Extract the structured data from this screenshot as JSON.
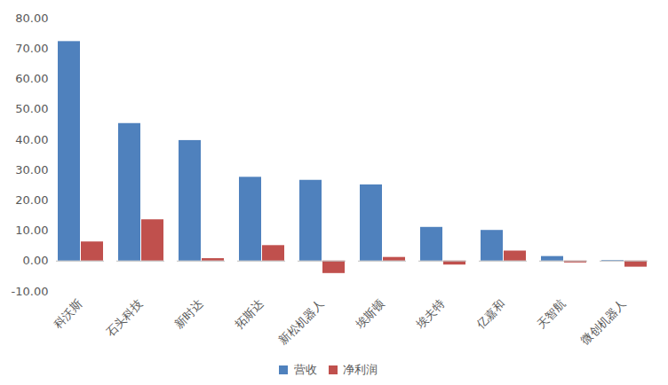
{
  "chart_data": {
    "type": "bar",
    "categories": [
      "科沃斯",
      "石头科技",
      "新时达",
      "拓斯达",
      "新松机器人",
      "埃斯顿",
      "埃夫特",
      "亿嘉和",
      "天智航",
      "微创机器人"
    ],
    "series": [
      {
        "name": "营收",
        "color": "#4f81bd",
        "values": [
          72.3,
          45.3,
          39.7,
          27.6,
          26.6,
          25.1,
          11.1,
          10.1,
          1.5,
          0.2
        ]
      },
      {
        "name": "净利润",
        "color": "#c0504d",
        "values": [
          6.3,
          13.6,
          0.8,
          5.1,
          -4.1,
          1.2,
          -1.3,
          3.3,
          -0.6,
          -2.0
        ]
      }
    ],
    "ylim": [
      -10,
      80
    ],
    "yticks": [
      {
        "value": -10,
        "label": "-10.00"
      },
      {
        "value": 0,
        "label": "0.00"
      },
      {
        "value": 10,
        "label": "10.00"
      },
      {
        "value": 20,
        "label": "20.00"
      },
      {
        "value": 30,
        "label": "30.00"
      },
      {
        "value": 40,
        "label": "40.00"
      },
      {
        "value": 50,
        "label": "50.00"
      },
      {
        "value": 60,
        "label": "60.00"
      },
      {
        "value": 70,
        "label": "70.00"
      },
      {
        "value": 80,
        "label": "80.00"
      }
    ],
    "grid": false,
    "legend": "bottom"
  }
}
